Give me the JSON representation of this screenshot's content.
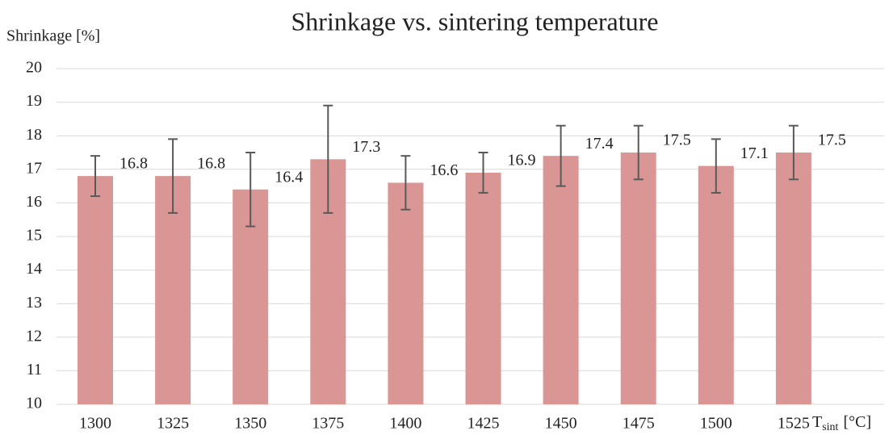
{
  "chart_data": {
    "type": "bar",
    "title": "Shrinkage vs. sintering temperature",
    "ylabel": "Shrinkage [%]",
    "xlabel": "T",
    "xlabel_sub": "sint",
    "xlabel_unit": "[°C]",
    "categories": [
      "1300",
      "1325",
      "1350",
      "1375",
      "1400",
      "1425",
      "1450",
      "1475",
      "1500",
      "1525"
    ],
    "values": [
      16.8,
      16.8,
      16.4,
      17.3,
      16.6,
      16.9,
      17.4,
      17.5,
      17.1,
      17.5
    ],
    "errors": [
      0.6,
      1.1,
      1.1,
      1.6,
      0.8,
      0.6,
      0.9,
      0.8,
      0.8,
      0.8
    ],
    "color": "#d99694",
    "error_color": "#595959",
    "ylim": [
      10,
      20
    ],
    "yticks": [
      10,
      11,
      12,
      13,
      14,
      15,
      16,
      17,
      18,
      19,
      20
    ],
    "grid": true
  }
}
